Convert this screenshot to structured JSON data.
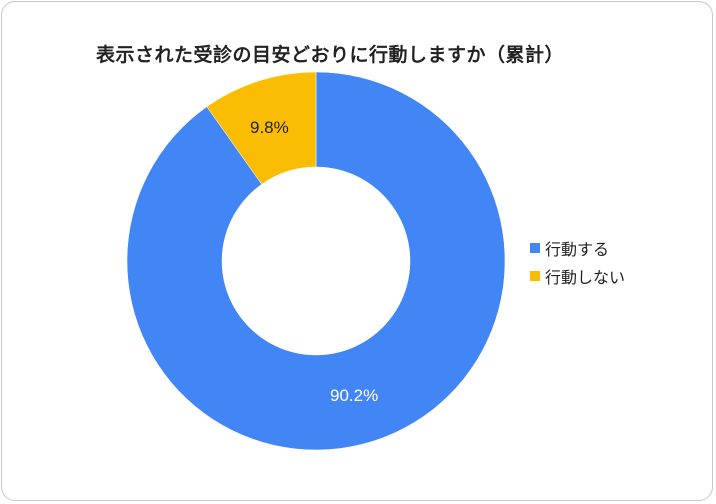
{
  "chart_data": {
    "type": "pie",
    "variant": "donut",
    "title": "表示された受診の目安どおりに行動しますか（累計）",
    "categories": [
      "行動する",
      "行動しない"
    ],
    "values": [
      90.2,
      9.8
    ],
    "unit": "%",
    "colors": [
      "#4285f4",
      "#fbbc04"
    ],
    "data_labels": [
      "90.2%",
      "9.8%"
    ],
    "legend_position": "right",
    "start_angle_deg": 0,
    "direction": "clockwise"
  },
  "title": "表示された受診の目安どおりに行動しますか（累計）",
  "legend": {
    "items": [
      {
        "label": "行動する",
        "color": "#4285f4"
      },
      {
        "label": "行動しない",
        "color": "#fbbc04"
      }
    ]
  },
  "labels": {
    "act": "90.2%",
    "not_act": "9.8%"
  }
}
